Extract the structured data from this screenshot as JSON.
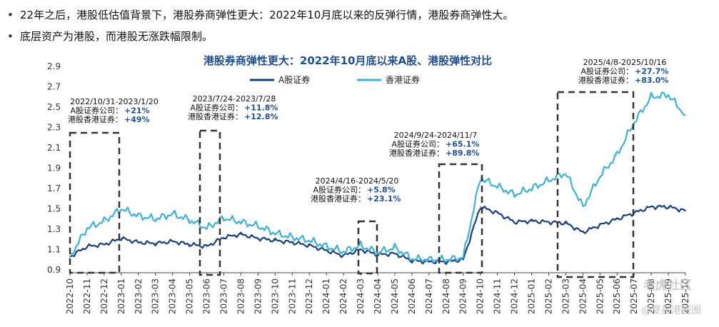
{
  "bullets": [
    "22年之后，港股低估值背景下，港股券商弹性更大：2022年10月底以来的反弹行情，港股券商弹性大。",
    "底层资产为港股，而港股无涨跌幅限制。"
  ],
  "colors": {
    "a_share": "#1b3f7a",
    "hk_share": "#3fb0d6",
    "title": "#1f4e8c",
    "annotation_value": "#1f4e8c",
    "dashed_box": "#333333",
    "axis": "#444444"
  },
  "watermark": {
    "line1": "老虎社区",
    "line2": "@夏星港股圈"
  },
  "chart_data": {
    "type": "line",
    "title": "港股券商弹性更大：2022年10月底以来A股、港股弹性对比",
    "ylim": [
      0.9,
      2.9
    ],
    "yticks": [
      "0.9",
      "1.1",
      "1.3",
      "1.5",
      "1.7",
      "1.9",
      "2.1",
      "2.3",
      "2.5",
      "2.7",
      "2.9"
    ],
    "x": [
      "2022-10",
      "2022-11",
      "2022-12",
      "2023-01",
      "2023-02",
      "2023-03",
      "2023-04",
      "2023-05",
      "2023-06",
      "2023-07",
      "2023-08",
      "2023-09",
      "2023-10",
      "2023-11",
      "2023-12",
      "2024-01",
      "2024-02",
      "2024-03",
      "2024-04",
      "2024-05",
      "2024-06",
      "2024-07",
      "2024-08",
      "2024-09",
      "2024-10",
      "2024-11",
      "2024-12",
      "2025-01",
      "2025-02",
      "2025-03",
      "2025-04",
      "2025-05",
      "2025-06",
      "2025-07",
      "2025-08",
      "2025-09",
      "2025-10"
    ],
    "xtick_labels": [
      "2022-10",
      "2022-11",
      "2022-12",
      "2023-01",
      "2023-02",
      "2023-03",
      "2023-04",
      "2023-05",
      "2023-06",
      "2023-07",
      "2023-08",
      "2023-09",
      "2023-10",
      "2023-11",
      "2023-12",
      "2024-01",
      "2024-02",
      "2024-03",
      "2024-04",
      "2024-05",
      "2024-06",
      "2024-07",
      "2024-08",
      "2024-09",
      "2024-10",
      "2024-11",
      "2024-12",
      "2025-01",
      "2025-02",
      "2025-03",
      "2025-04",
      "2025-05",
      "2025-06",
      "2025-07",
      "2025-08",
      "2025-09",
      "2025-10"
    ],
    "series": [
      {
        "name": "A股证券",
        "color": "#1b3f7a",
        "values": [
          1.03,
          1.13,
          1.15,
          1.21,
          1.17,
          1.16,
          1.18,
          1.15,
          1.13,
          1.22,
          1.25,
          1.21,
          1.19,
          1.17,
          1.14,
          1.09,
          1.04,
          1.1,
          1.05,
          1.06,
          0.99,
          0.98,
          0.98,
          1.0,
          1.52,
          1.46,
          1.37,
          1.38,
          1.37,
          1.36,
          1.27,
          1.34,
          1.4,
          1.46,
          1.52,
          1.52,
          1.48
        ]
      },
      {
        "name": "香港证券",
        "color": "#3fb0d6",
        "values": [
          1.03,
          1.31,
          1.38,
          1.5,
          1.43,
          1.4,
          1.45,
          1.39,
          1.31,
          1.41,
          1.37,
          1.33,
          1.26,
          1.22,
          1.19,
          1.13,
          1.08,
          1.14,
          1.07,
          1.12,
          1.01,
          1.0,
          1.0,
          1.02,
          1.8,
          1.72,
          1.64,
          1.7,
          1.78,
          1.85,
          1.52,
          1.82,
          2.03,
          2.35,
          2.6,
          2.62,
          2.42
        ]
      }
    ],
    "annotations": [
      {
        "period": "2022/10/31-2023/1/20",
        "a_label": "A股证券公司：",
        "a_value": "+21%",
        "hk_label": "港股香港证券：",
        "hk_value": "+49%"
      },
      {
        "period": "2023/7/24-2023/7/28",
        "a_label": "A股证券公司：",
        "a_value": "+11.8%",
        "hk_label": "港股香港证券：",
        "hk_value": "+12.8%"
      },
      {
        "period": "2024/4/16-2024/5/20",
        "a_label": "A股证券公司：",
        "a_value": "+5.8%",
        "hk_label": "港股香港证券：",
        "hk_value": "+23.1%"
      },
      {
        "period": "2024/9/24-2024/11/7",
        "a_label": "A股证券公司：",
        "a_value": "+65.1%",
        "hk_label": "港股香港证券：",
        "hk_value": "+89.8%"
      },
      {
        "period": "2025/4/8-2025/10/16",
        "a_label": "A股证券公司：",
        "a_value": "+27.7%",
        "hk_label": "港股香港证券：",
        "hk_value": "+83.0%"
      }
    ],
    "legend_position": "top-center"
  }
}
